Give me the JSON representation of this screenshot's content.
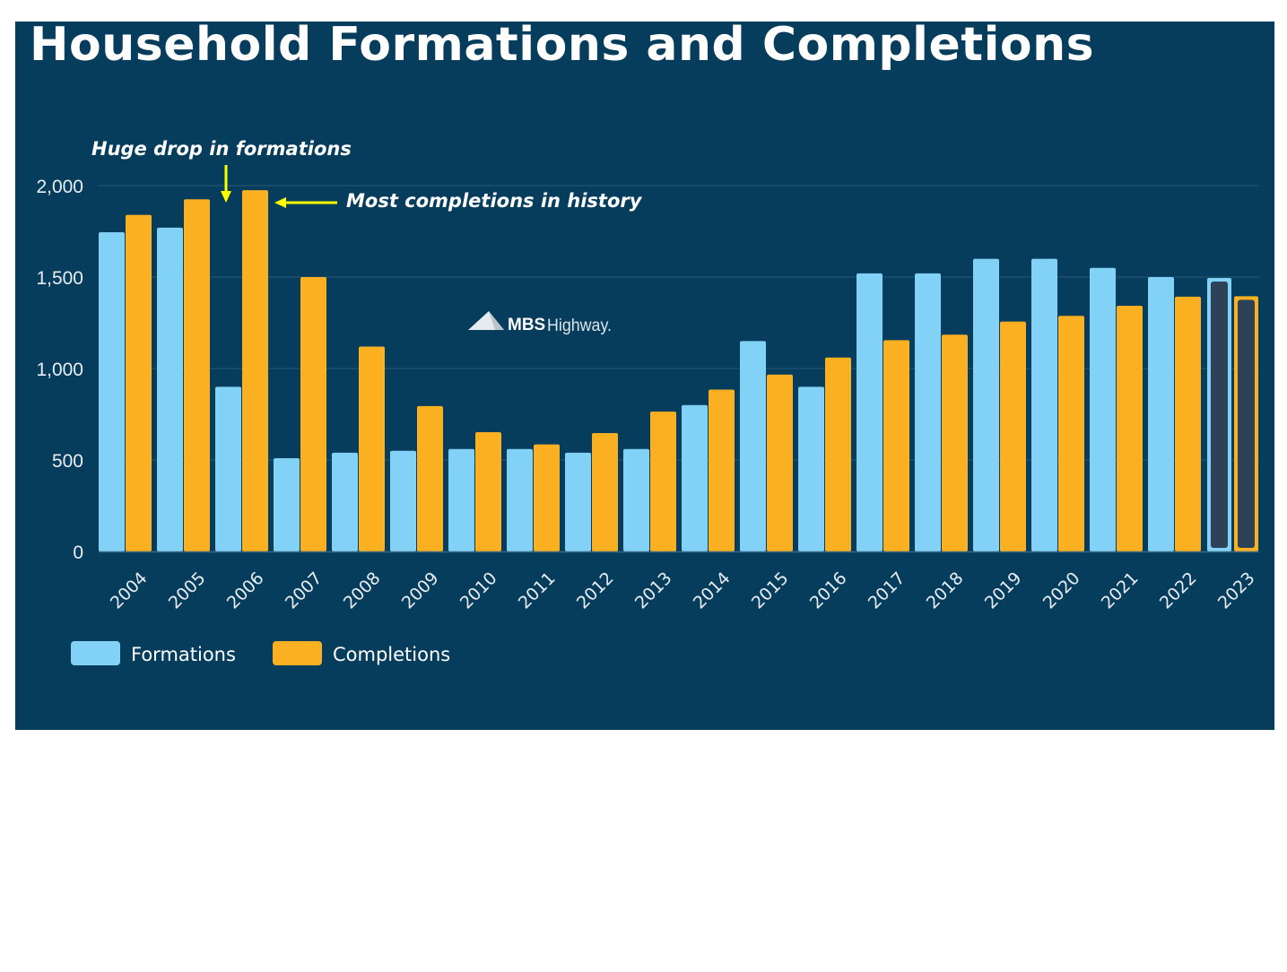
{
  "chart_data": {
    "type": "bar",
    "title": "Household Formations and Completions",
    "xlabel": "",
    "ylabel": "",
    "ylim": [
      0,
      2000
    ],
    "yticks": [
      "0",
      "500",
      "1,000",
      "1,500",
      "2,000"
    ],
    "ytick_values": [
      0,
      500,
      1000,
      1500,
      2000
    ],
    "grid": true,
    "categories": [
      "2004",
      "2005",
      "2006",
      "2007",
      "2008",
      "2009",
      "2010",
      "2011",
      "2012",
      "2013",
      "2014",
      "2015",
      "2016",
      "2017",
      "2018",
      "2019",
      "2020",
      "2021",
      "2022",
      "2023"
    ],
    "series": [
      {
        "name": "Formations",
        "color": "#82d2f7",
        "values": [
          1745,
          1770,
          900,
          510,
          540,
          550,
          560,
          560,
          540,
          560,
          800,
          1150,
          900,
          1520,
          1520,
          1600,
          1600,
          1550,
          1500,
          1500
        ]
      },
      {
        "name": "Completions",
        "color": "#fbb022",
        "values": [
          1840,
          1925,
          1975,
          1500,
          1120,
          795,
          652,
          585,
          647,
          765,
          885,
          967,
          1060,
          1155,
          1185,
          1257,
          1288,
          1343,
          1393,
          1400
        ]
      }
    ],
    "highlighted_category": "2023",
    "highlight_fill": "#2d4157",
    "legend": {
      "placement": "bottom-left",
      "entries": [
        "Formations",
        "Completions"
      ]
    },
    "annotations": [
      {
        "text": "Huge drop in formations",
        "target": "2006",
        "arrow": "down",
        "color": "#ffff00"
      },
      {
        "text": "Most completions in history",
        "target": "2006",
        "arrow": "left",
        "color": "#ffff00"
      }
    ]
  },
  "watermark": {
    "brand": "MBS",
    "suffix": "Highway."
  },
  "colors": {
    "background": "#063c5c",
    "grid": "#2a5a78",
    "annotation_arrow": "#ffff00"
  }
}
